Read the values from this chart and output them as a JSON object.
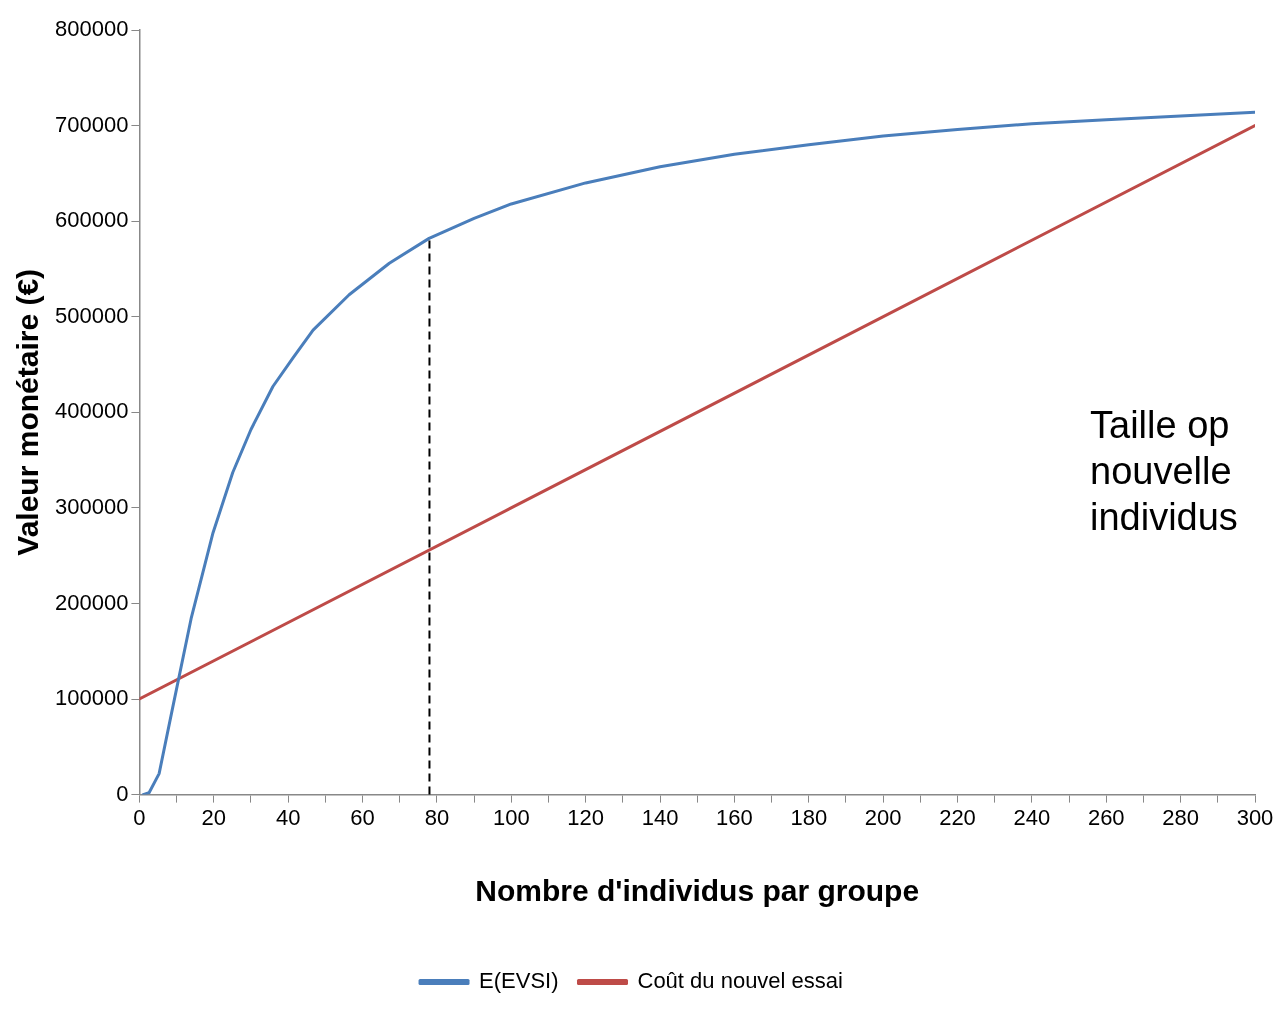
{
  "chart_data": {
    "type": "line",
    "xlabel": "Nombre d'individus par groupe",
    "ylabel": "Valeur monétaire (€)",
    "xlim": [
      0,
      300
    ],
    "ylim": [
      0,
      800000
    ],
    "xticks": [
      0,
      {
        "value": 10,
        "label": null
      },
      20,
      {
        "value": 30,
        "label": null
      },
      40,
      {
        "value": 50,
        "label": null
      },
      60,
      {
        "value": 70,
        "label": null
      },
      80,
      {
        "value": 90,
        "label": null
      },
      100,
      {
        "value": 110,
        "label": null
      },
      120,
      {
        "value": 130,
        "label": null
      },
      140,
      {
        "value": 150,
        "label": null
      },
      160,
      {
        "value": 170,
        "label": null
      },
      180,
      {
        "value": 190,
        "label": null
      },
      200,
      {
        "value": 210,
        "label": null
      },
      220,
      {
        "value": 230,
        "label": null
      },
      240,
      {
        "value": 250,
        "label": null
      },
      260,
      {
        "value": 270,
        "label": null
      },
      280,
      {
        "value": 290,
        "label": null
      },
      300
    ],
    "yticks": [
      0,
      100000,
      200000,
      300000,
      400000,
      500000,
      600000,
      700000,
      800000
    ],
    "grid": false,
    "legend": "bottom",
    "marker": "none",
    "line_style": "solid",
    "series": [
      {
        "name": "E(EVSI)",
        "color": "#4a7ebb",
        "x": [
          1,
          2.6,
          5.3,
          9,
          13.9,
          19.8,
          25.1,
          30,
          35.9,
          41.3,
          46.7,
          56.4,
          67.2,
          77.9,
          90,
          100,
          120,
          140,
          160,
          180,
          200,
          220,
          240,
          260,
          280,
          300
        ],
        "values": [
          0,
          2000,
          22000,
          92000,
          184000,
          274000,
          337000,
          382000,
          427000,
          457000,
          486000,
          523000,
          556000,
          582000,
          603000,
          618000,
          640000,
          657000,
          670000,
          680000,
          689000,
          696000,
          702000,
          706000,
          710000,
          714000
        ]
      },
      {
        "name": "Coût du nouvel essai",
        "color": "#be4b48",
        "x": [
          0,
          300
        ],
        "values": [
          100000,
          700000
        ]
      }
    ],
    "ref_lines": [
      {
        "axis": "x",
        "value": 78,
        "color": "#000000",
        "line_style": "dashed"
      }
    ],
    "annotations": [
      "Taille op\nnouvelle\nindividus"
    ]
  }
}
